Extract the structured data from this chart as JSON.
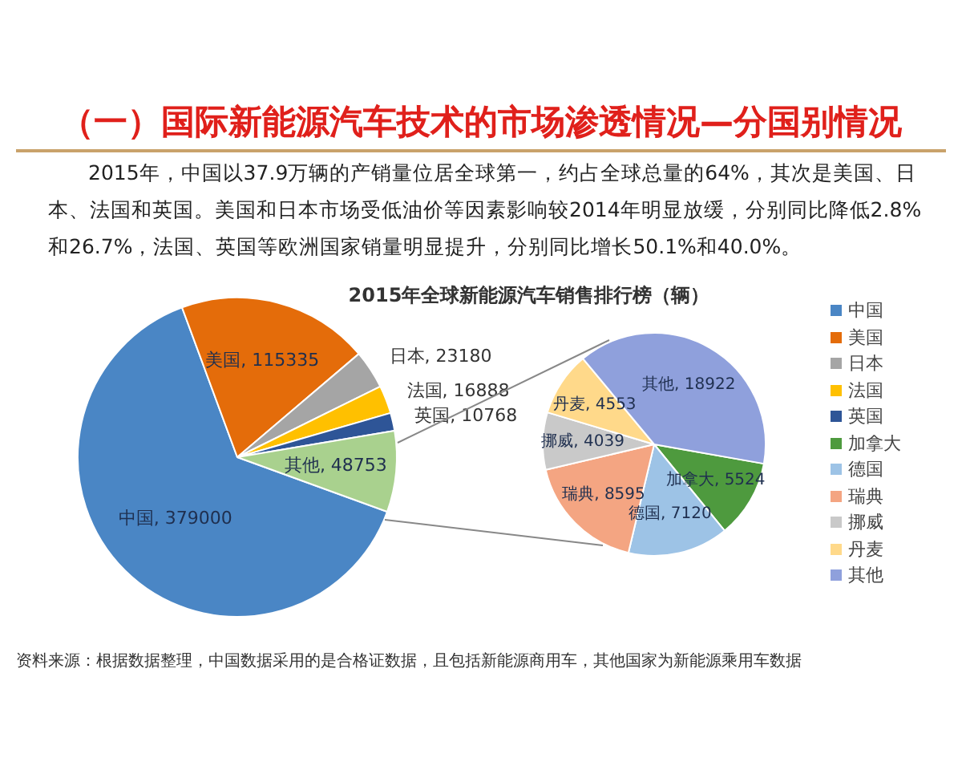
{
  "chart_data": [
    {
      "type": "pie",
      "title": "（一）国际新能源汽车技术的市场渗透情况—分国别情况",
      "subtitle": "2015年，中国以37.9万辆的产销量位居全球第一，约占全球总量的64%，其次是美国、日本、法国和英国。美国和日本市场受低油价等因素影响较2014年明显放缓，分别同比降低2.8%和26.7%，法国、英国等欧洲国家销量明显提升，分别同比增长50.1%和40.0%。",
      "categories": [
        "中国",
        "美国",
        "日本",
        "法国",
        "英国",
        "其他"
      ],
      "values": [
        379000,
        115335,
        23180,
        16888,
        10768,
        48753
      ],
      "colors": [
        "#4a86c5",
        "#e46c0a",
        "#a5a5a5",
        "#ffc000",
        "#2e5597",
        "#a9d18e"
      ],
      "value_labels": [
        ", 379000",
        ", 115335",
        ", 23180",
        ", 16888",
        ", 10768",
        ", 48753"
      ],
      "legend": "right",
      "annotations": [
        "资料来源：根据数据整理，中国数据采用的是合格证数据，且包括新能源商用车，其他国家为新能源乘用车数据"
      ]
    },
    {
      "type": "pie",
      "title": "2015年全球新能源汽车销售排行榜（辆）",
      "categories": [
        "加拿大",
        "德国",
        "瑞典",
        "挪威",
        "丹麦",
        "其他"
      ],
      "values": [
        5524,
        7120,
        8595,
        4039,
        4553,
        18922
      ],
      "colors": [
        "#4e9a3e",
        "#9dc3e6",
        "#f4a582",
        "#c9c9c9",
        "#ffd98a",
        "#8fa0dc"
      ],
      "value_labels": [
        ", 5524",
        ", 7120",
        ", 8595",
        ", 4039",
        ", 4553",
        ", 18922"
      ],
      "legend": "right"
    }
  ]
}
